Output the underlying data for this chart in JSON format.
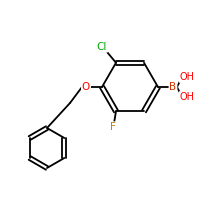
{
  "background_color": "#ffffff",
  "atom_colors": {
    "C": "#000000",
    "Cl": "#00aa00",
    "O": "#ff0000",
    "F": "#bb8800",
    "B": "#cc3300",
    "H": "#000000"
  },
  "bond_color": "#000000",
  "bond_width": 1.3,
  "figsize": [
    2.0,
    2.0
  ],
  "dpi": 100
}
